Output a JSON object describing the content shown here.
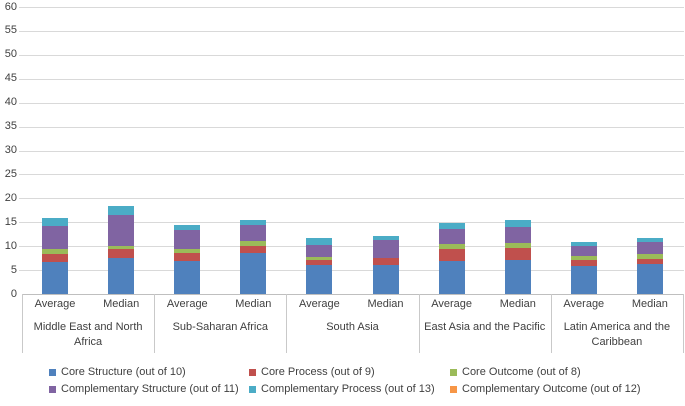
{
  "chart_data": {
    "type": "bar",
    "stacked": true,
    "title": "",
    "xlabel": "",
    "ylabel": "",
    "ylim": [
      0,
      60
    ],
    "y_ticks": [
      0,
      5,
      10,
      15,
      20,
      25,
      30,
      35,
      40,
      45,
      50,
      55,
      60
    ],
    "grid": true,
    "legend_position": "bottom",
    "groups": [
      {
        "label": "Middle East and North Africa",
        "columns": [
          "Average",
          "Median"
        ]
      },
      {
        "label": "Sub-Saharan Africa",
        "columns": [
          "Average",
          "Median"
        ]
      },
      {
        "label": "South Asia",
        "columns": [
          "Average",
          "Median"
        ]
      },
      {
        "label": "East Asia and the Pacific",
        "columns": [
          "Average",
          "Median"
        ]
      },
      {
        "label": "Latin America and the Caribbean",
        "columns": [
          "Average",
          "Median"
        ]
      }
    ],
    "series": [
      {
        "name": "Core Structure (out of 10)",
        "color": "#4F81BD",
        "values": [
          6.7,
          7.5,
          6.9,
          8.5,
          6.1,
          6.0,
          6.8,
          7.0,
          5.8,
          6.3
        ]
      },
      {
        "name": "Core Process (out of 9)",
        "color": "#C0504D",
        "values": [
          1.7,
          2.0,
          1.7,
          1.5,
          1.1,
          1.5,
          2.5,
          2.7,
          1.2,
          1.0
        ]
      },
      {
        "name": "Core Outcome (out of 8)",
        "color": "#9BBB59",
        "values": [
          0.9,
          0.5,
          0.9,
          1.0,
          0.5,
          0.1,
          1.1,
          1.0,
          0.9,
          1.0
        ]
      },
      {
        "name": "Complementary Structure (out of 11)",
        "color": "#8064A2",
        "values": [
          5.0,
          6.5,
          3.8,
          3.5,
          2.6,
          3.7,
          3.1,
          3.3,
          2.1,
          2.5
        ]
      },
      {
        "name": "Complementary Process (out of 13)",
        "color": "#4BACC6",
        "values": [
          1.5,
          2.0,
          1.2,
          1.0,
          1.5,
          0.8,
          1.4,
          1.5,
          0.8,
          1.0
        ]
      },
      {
        "name": "Complementary Outcome (out of 12)",
        "color": "#F79646",
        "values": [
          0,
          0,
          0,
          0,
          0,
          0,
          0,
          0,
          0,
          0
        ]
      }
    ],
    "colors": {
      "grid": "#D9D9D9",
      "axis": "#BFBFBF",
      "text": "#404040",
      "background": "#FFFFFF"
    }
  }
}
